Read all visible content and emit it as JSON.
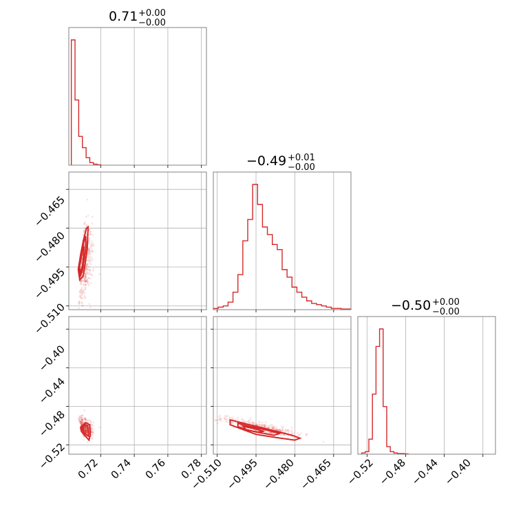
{
  "chart_data": {
    "type": "corner",
    "color": "#d62728",
    "grid": true,
    "parameters": [
      {
        "median": "0.71",
        "plus": "+0.00",
        "minus": "−0.00",
        "ticks": [
          0.72,
          0.74,
          0.76,
          0.78
        ],
        "tick_labels": [
          "0.72",
          "0.74",
          "0.76",
          "0.78"
        ]
      },
      {
        "median": "−0.49",
        "plus": "+0.01",
        "minus": "−0.00",
        "ticks": [
          -0.51,
          -0.495,
          -0.48,
          -0.465
        ],
        "tick_labels": [
          "−0.510",
          "−0.495",
          "−0.480",
          "−0.465"
        ]
      },
      {
        "median": "−0.50",
        "plus": "+0.00",
        "minus": "−0.00",
        "ticks": [
          -0.52,
          -0.48,
          -0.44,
          -0.4
        ],
        "tick_labels": [
          "−0.52",
          "−0.48",
          "−0.44",
          "−0.40"
        ]
      }
    ],
    "histograms": [
      {
        "edges": [
          0.7025,
          0.7047,
          0.7069,
          0.7091,
          0.7113,
          0.7135,
          0.7157,
          0.7179,
          0.7201
        ],
        "counts": [
          1.0,
          0.52,
          0.23,
          0.14,
          0.06,
          0.02,
          0.008,
          0.003
        ]
      },
      {
        "edges": [
          -0.5115,
          -0.5096,
          -0.5077,
          -0.5058,
          -0.5039,
          -0.502,
          -0.5001,
          -0.4982,
          -0.4963,
          -0.4944,
          -0.4925,
          -0.4906,
          -0.4887,
          -0.4868,
          -0.4849,
          -0.483,
          -0.4811,
          -0.4792,
          -0.4773,
          -0.4754,
          -0.4735,
          -0.4716,
          -0.4697,
          -0.4678,
          -0.4659,
          -0.464,
          -0.4621,
          -0.4602,
          -0.4583
        ],
        "counts": [
          0.01,
          0.02,
          0.03,
          0.06,
          0.14,
          0.28,
          0.55,
          0.72,
          1.0,
          0.84,
          0.66,
          0.6,
          0.52,
          0.48,
          0.32,
          0.26,
          0.18,
          0.14,
          0.1,
          0.07,
          0.05,
          0.04,
          0.03,
          0.02,
          0.01,
          0.01,
          0.005,
          0.005
        ]
      },
      {
        "edges": [
          -0.5255,
          -0.5218,
          -0.5181,
          -0.5144,
          -0.5107,
          -0.507,
          -0.5033,
          -0.4996,
          -0.4959,
          -0.4922,
          -0.4885,
          -0.4848,
          -0.4811,
          -0.4774
        ],
        "counts": [
          0.01,
          0.02,
          0.12,
          0.48,
          0.86,
          1.0,
          0.38,
          0.06,
          0.02,
          0.01,
          0.005,
          0.005,
          0.002
        ]
      }
    ],
    "contours": {
      "1_0": [
        [
          [
            0.7066,
            -0.496
          ],
          [
            0.7081,
            -0.49
          ],
          [
            0.7096,
            -0.485
          ],
          [
            0.7115,
            -0.48
          ],
          [
            0.7125,
            -0.4795
          ],
          [
            0.712,
            -0.488
          ],
          [
            0.7096,
            -0.4985
          ],
          [
            0.7075,
            -0.5
          ],
          [
            0.7066,
            -0.496
          ]
        ],
        [
          [
            0.707,
            -0.4955
          ],
          [
            0.7085,
            -0.4895
          ],
          [
            0.7098,
            -0.4855
          ],
          [
            0.711,
            -0.483
          ],
          [
            0.7112,
            -0.4875
          ],
          [
            0.709,
            -0.4965
          ],
          [
            0.7078,
            -0.4985
          ],
          [
            0.707,
            -0.4955
          ]
        ],
        [
          [
            0.7074,
            -0.495
          ],
          [
            0.709,
            -0.489
          ],
          [
            0.71,
            -0.487
          ],
          [
            0.7096,
            -0.493
          ],
          [
            0.708,
            -0.4975
          ],
          [
            0.7074,
            -0.495
          ]
        ]
      ],
      "2_0": [
        [
          [
            0.708,
            -0.502
          ],
          [
            0.711,
            -0.497
          ],
          [
            0.7135,
            -0.499
          ],
          [
            0.7138,
            -0.51
          ],
          [
            0.713,
            -0.515
          ],
          [
            0.711,
            -0.511
          ],
          [
            0.7085,
            -0.506
          ],
          [
            0.708,
            -0.502
          ]
        ],
        [
          [
            0.7085,
            -0.5025
          ],
          [
            0.7105,
            -0.499
          ],
          [
            0.7122,
            -0.5
          ],
          [
            0.7128,
            -0.511
          ],
          [
            0.7105,
            -0.508
          ],
          [
            0.7085,
            -0.5025
          ]
        ]
      ],
      "2_1": [
        [
          [
            -0.505,
            -0.494
          ],
          [
            -0.499,
            -0.498
          ],
          [
            -0.493,
            -0.502
          ],
          [
            -0.487,
            -0.506
          ],
          [
            -0.481,
            -0.51
          ],
          [
            -0.478,
            -0.513
          ],
          [
            -0.48,
            -0.515
          ],
          [
            -0.488,
            -0.512
          ],
          [
            -0.495,
            -0.509
          ],
          [
            -0.501,
            -0.503
          ],
          [
            -0.505,
            -0.499
          ],
          [
            -0.505,
            -0.494
          ]
        ],
        [
          [
            -0.502,
            -0.4975
          ],
          [
            -0.497,
            -0.501
          ],
          [
            -0.49,
            -0.505
          ],
          [
            -0.486,
            -0.508
          ],
          [
            -0.488,
            -0.51
          ],
          [
            -0.494,
            -0.507
          ],
          [
            -0.499,
            -0.504
          ],
          [
            -0.502,
            -0.501
          ],
          [
            -0.502,
            -0.4975
          ]
        ],
        [
          [
            -0.5,
            -0.5005
          ],
          [
            -0.495,
            -0.5035
          ],
          [
            -0.492,
            -0.506
          ],
          [
            -0.495,
            -0.5065
          ],
          [
            -0.499,
            -0.504
          ],
          [
            -0.5,
            -0.5005
          ]
        ]
      ]
    }
  }
}
